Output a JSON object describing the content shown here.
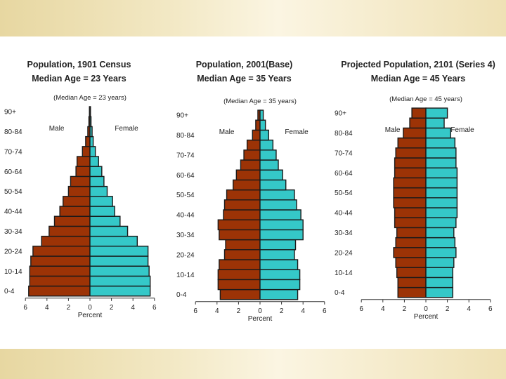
{
  "chart_data": [
    {
      "type": "bar",
      "title": "Population, 1901 Census",
      "subtitle": "Median Age = 23 Years",
      "annotation": "(Median Age = 23 years)",
      "xlabel": "Percent",
      "male_label": "Male",
      "female_label": "Female",
      "xlim": [
        -6,
        6
      ],
      "xticks": [
        "6",
        "4",
        "2",
        "0",
        "2",
        "4",
        "6"
      ],
      "age_groups": [
        "0-4",
        "5-9",
        "10-14",
        "15-19",
        "20-24",
        "25-29",
        "30-34",
        "35-39",
        "40-44",
        "45-49",
        "50-54",
        "55-59",
        "60-64",
        "65-69",
        "70-74",
        "75-79",
        "80-84",
        "85-89",
        "90+"
      ],
      "age_labels_shown": [
        "0-4",
        "10-14",
        "20-24",
        "30-34",
        "40-44",
        "50-54",
        "60-64",
        "70-74",
        "80-84",
        "90+"
      ],
      "series": [
        {
          "name": "Male",
          "values": [
            5.7,
            5.6,
            5.6,
            5.5,
            5.3,
            4.5,
            3.8,
            3.3,
            2.8,
            2.5,
            2.0,
            1.8,
            1.3,
            1.2,
            0.7,
            0.4,
            0.2,
            0.1,
            0.05
          ]
        },
        {
          "name": "Female",
          "values": [
            5.6,
            5.6,
            5.5,
            5.4,
            5.4,
            4.4,
            3.5,
            2.8,
            2.3,
            2.1,
            1.6,
            1.3,
            1.1,
            0.8,
            0.5,
            0.3,
            0.2,
            0.1,
            0.05
          ]
        }
      ]
    },
    {
      "type": "bar",
      "title": "Population, 2001(Base)",
      "subtitle": "Median Age = 35 Years",
      "annotation": "(Median Age = 35 years)",
      "xlabel": "Percent",
      "male_label": "Male",
      "female_label": "Female",
      "xlim": [
        -6,
        6
      ],
      "xticks": [
        "6",
        "4",
        "2",
        "0",
        "2",
        "4",
        "6"
      ],
      "age_groups": [
        "0-4",
        "5-9",
        "10-14",
        "15-19",
        "20-24",
        "25-29",
        "30-34",
        "35-39",
        "40-44",
        "45-49",
        "50-54",
        "55-59",
        "60-64",
        "65-69",
        "70-74",
        "75-79",
        "80-84",
        "85-89",
        "90+"
      ],
      "age_labels_shown": [
        "0-4",
        "10-14",
        "20-24",
        "30-34",
        "40-44",
        "50-54",
        "60-64",
        "70-74",
        "80-84",
        "90+"
      ],
      "series": [
        {
          "name": "Male",
          "values": [
            3.7,
            3.9,
            3.9,
            3.8,
            3.3,
            3.2,
            3.8,
            3.9,
            3.4,
            3.3,
            3.1,
            2.5,
            2.2,
            1.8,
            1.5,
            1.2,
            0.7,
            0.4,
            0.2
          ]
        },
        {
          "name": "Female",
          "values": [
            3.5,
            3.7,
            3.7,
            3.5,
            3.2,
            3.3,
            4.0,
            4.0,
            3.8,
            3.4,
            3.2,
            2.4,
            2.1,
            1.7,
            1.5,
            1.2,
            0.8,
            0.5,
            0.3
          ]
        }
      ]
    },
    {
      "type": "bar",
      "title": "Projected Population, 2101 (Series 4)",
      "subtitle": "Median Age = 45 Years",
      "annotation": "(Median Age = 45 years)",
      "xlabel": "Percent",
      "male_label": "Male",
      "female_label": "Female",
      "xlim": [
        -6,
        6
      ],
      "xticks": [
        "6",
        "4",
        "2",
        "0",
        "2",
        "4",
        "6"
      ],
      "age_groups": [
        "0-4",
        "5-9",
        "10-14",
        "15-19",
        "20-24",
        "25-29",
        "30-34",
        "35-39",
        "40-44",
        "45-49",
        "50-54",
        "55-59",
        "60-64",
        "65-69",
        "70-74",
        "75-79",
        "80-84",
        "85-89",
        "90+"
      ],
      "age_labels_shown": [
        "0-4",
        "10-14",
        "20-24",
        "30-34",
        "40-44",
        "50-54",
        "60-64",
        "70-74",
        "80-84",
        "90+"
      ],
      "series": [
        {
          "name": "Male",
          "values": [
            2.6,
            2.6,
            2.7,
            2.8,
            3.0,
            2.8,
            2.7,
            2.9,
            2.9,
            3.0,
            3.0,
            3.0,
            2.9,
            2.9,
            2.8,
            2.6,
            2.1,
            1.5,
            1.3
          ]
        },
        {
          "name": "Female",
          "values": [
            2.5,
            2.5,
            2.5,
            2.6,
            2.8,
            2.7,
            2.6,
            2.8,
            2.9,
            2.9,
            2.9,
            2.9,
            2.9,
            2.8,
            2.8,
            2.7,
            2.3,
            1.7,
            2.0
          ]
        }
      ]
    }
  ],
  "colors": {
    "male": "#9c3306",
    "female": "#35c8c8",
    "outline": "#1a1a1a",
    "axis": "#333333"
  }
}
